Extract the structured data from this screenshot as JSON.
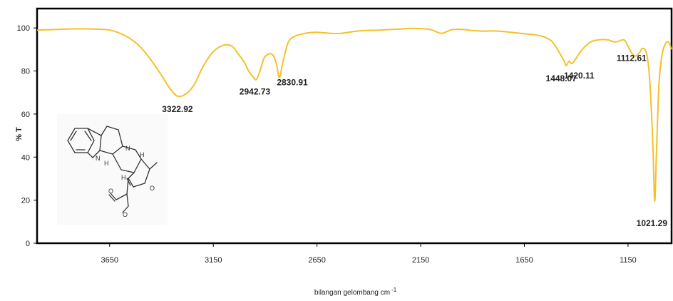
{
  "chart_data": {
    "type": "line",
    "title": "",
    "xlabel": "bilangan gelombang cm",
    "xlabel_superscript": "-1",
    "ylabel": "% T",
    "xlim": [
      4000,
      940
    ],
    "ylim": [
      0,
      109
    ],
    "x_reversed": true,
    "grid": false,
    "legend": "none",
    "xticks": [
      3650,
      3150,
      2650,
      2150,
      1650,
      1150
    ],
    "yticks": [
      0,
      20,
      40,
      60,
      80,
      100
    ],
    "series": [
      {
        "color": "#f5c02b",
        "x": [
          4000,
          3900,
          3800,
          3700,
          3650,
          3600,
          3550,
          3500,
          3450,
          3400,
          3360,
          3322.92,
          3280,
          3240,
          3200,
          3150,
          3100,
          3060,
          3030,
          3000,
          2980,
          2960,
          2942.73,
          2925,
          2905,
          2880,
          2860,
          2845,
          2830.91,
          2815,
          2790,
          2760,
          2700,
          2650,
          2550,
          2450,
          2350,
          2250,
          2200,
          2150,
          2100,
          2050,
          2000,
          1950,
          1900,
          1850,
          1800,
          1750,
          1700,
          1650,
          1600,
          1560,
          1520,
          1490,
          1460,
          1448.07,
          1435,
          1420.11,
          1400,
          1370,
          1330,
          1290,
          1250,
          1210,
          1170,
          1150,
          1130,
          1112.61,
          1095,
          1080,
          1060,
          1045,
          1030,
          1021.29,
          1012,
          1000,
          985,
          970,
          955,
          940
        ],
        "y": [
          99,
          99.3,
          99.6,
          99.4,
          99,
          97.5,
          95,
          91,
          85,
          78,
          72,
          68.3,
          69.5,
          74,
          82,
          89,
          92,
          91.5,
          88,
          84,
          80,
          77.5,
          76,
          80,
          86,
          88,
          87,
          83,
          77,
          84,
          93,
          96,
          97.6,
          98,
          97.4,
          98.6,
          99,
          99.5,
          99.8,
          99.7,
          99.2,
          97.5,
          99.2,
          99.3,
          98.8,
          98.5,
          98.6,
          98.3,
          97.8,
          97.3,
          96.8,
          96,
          94,
          90,
          85,
          82.5,
          84.5,
          83.5,
          86,
          90,
          93.5,
          94.5,
          94.5,
          93.5,
          94.5,
          91.5,
          88,
          87,
          88.5,
          90.5,
          88,
          75,
          45,
          19.5,
          45,
          75,
          88,
          92.5,
          93.5,
          90
        ]
      }
    ],
    "annotations": [
      {
        "text": "3322.92",
        "x": 3322.92,
        "y": 68.3
      },
      {
        "text": "2942.73",
        "x": 2942.73,
        "y": 76
      },
      {
        "text": "2830.91",
        "x": 2830.91,
        "y": 77
      },
      {
        "text": "1448.07",
        "x": 1448.07,
        "y": 82.5
      },
      {
        "text": "1420.11",
        "x": 1420.11,
        "y": 83.5
      },
      {
        "text": "1112.61",
        "x": 1112.61,
        "y": 87
      },
      {
        "text": "1021.29",
        "x": 1021.29,
        "y": 19.5
      }
    ]
  }
}
